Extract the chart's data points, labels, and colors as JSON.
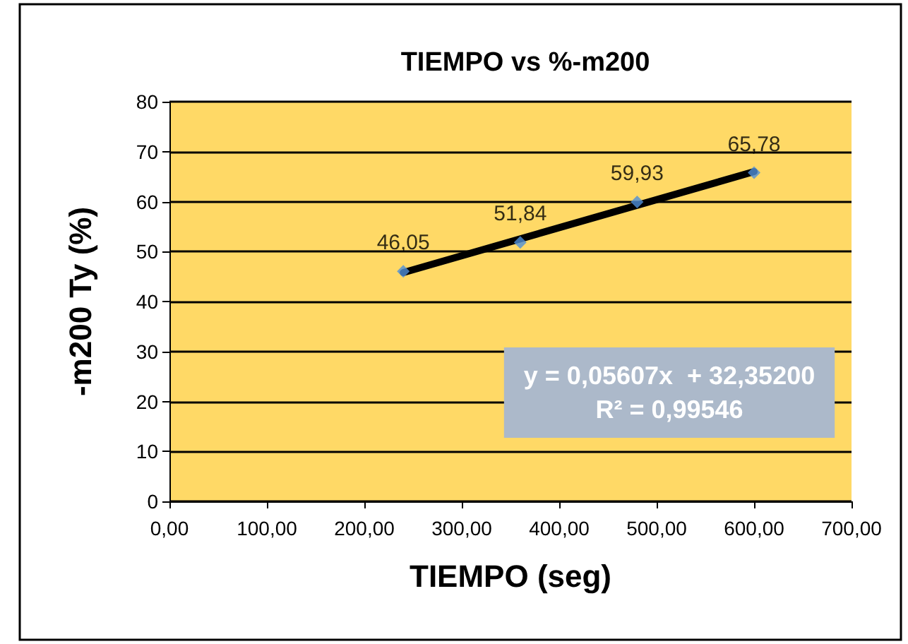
{
  "chart_data": {
    "type": "scatter",
    "title": "TIEMPO vs %-m200",
    "xlabel": "TIEMPO (seg)",
    "ylabel": "-m200 Ty (%)",
    "x": [
      240,
      360,
      480,
      600
    ],
    "series": [
      {
        "color": "#4f8fd8",
        "marker": "diamond",
        "values": [
          46.05,
          51.84,
          59.93,
          65.78
        ],
        "value_labels": [
          "46,05",
          "51,84",
          "59,93",
          "65,78"
        ]
      },
      {
        "type": "line",
        "color": "#000000",
        "marker": "none",
        "line_style": "solid",
        "x": [
          240,
          600
        ],
        "values": [
          45.8,
          66.0
        ]
      }
    ],
    "xlim": [
      0,
      700
    ],
    "xticks": [
      {
        "value": 0,
        "label": "0,00"
      },
      {
        "value": 100,
        "label": "100,00"
      },
      {
        "value": 200,
        "label": "200,00"
      },
      {
        "value": 300,
        "label": "300,00"
      },
      {
        "value": 400,
        "label": "400,00"
      },
      {
        "value": 500,
        "label": "500,00"
      },
      {
        "value": 600,
        "label": "600,00"
      },
      {
        "value": 700,
        "label": "700,00"
      }
    ],
    "ylim": [
      0,
      80
    ],
    "yticks": [
      0,
      10,
      20,
      30,
      40,
      50,
      60,
      70,
      80
    ],
    "grid": "y",
    "annotations": [
      "y = 0,05607x  + 32,35200\nR² = 0,99546"
    ]
  }
}
